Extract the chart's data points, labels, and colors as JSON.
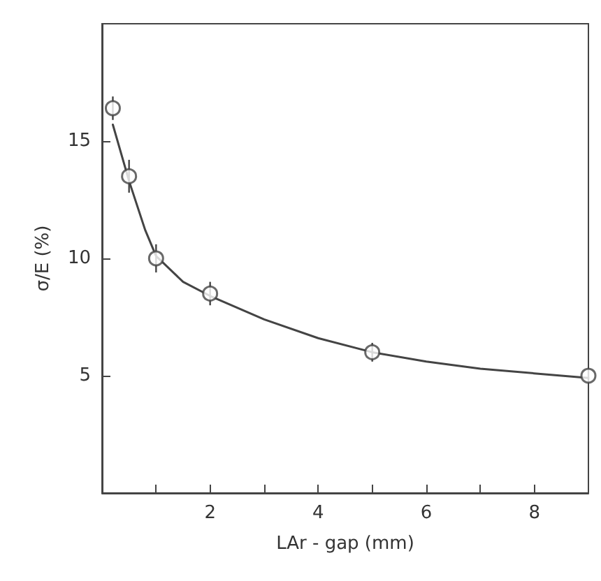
{
  "chart_data": {
    "type": "scatter",
    "xlabel": "LAr - gap (mm)",
    "ylabel": "σ/E (%)",
    "xlim": [
      0,
      9
    ],
    "ylim": [
      0,
      20
    ],
    "xticks": [
      {
        "value": 1,
        "label": null
      },
      2,
      {
        "value": 3,
        "label": null
      },
      4,
      {
        "value": 5,
        "label": null
      },
      6,
      {
        "value": 7,
        "label": null
      },
      8
    ],
    "yticks": [
      5,
      10,
      15
    ],
    "grid": false,
    "marker": "circle",
    "series": [
      {
        "color": "#444444",
        "x": [
          0.2,
          0.5,
          1,
          2,
          5,
          9
        ],
        "values": [
          16.4,
          13.5,
          10,
          8.5,
          6,
          5
        ],
        "errors": [
          0.5,
          0.7,
          0.6,
          0.5,
          0.4,
          0.3
        ]
      },
      {
        "type": "line",
        "color": "#444444",
        "marker": "none",
        "line_style": "solid",
        "x": [
          0.2,
          0.5,
          0.8,
          1,
          1.5,
          2,
          3,
          4,
          5,
          6,
          7,
          8,
          9
        ],
        "values": [
          15.7,
          13.3,
          11.2,
          10.1,
          9,
          8.4,
          7.4,
          6.6,
          6,
          5.6,
          5.3,
          5.1,
          4.9
        ]
      }
    ]
  }
}
